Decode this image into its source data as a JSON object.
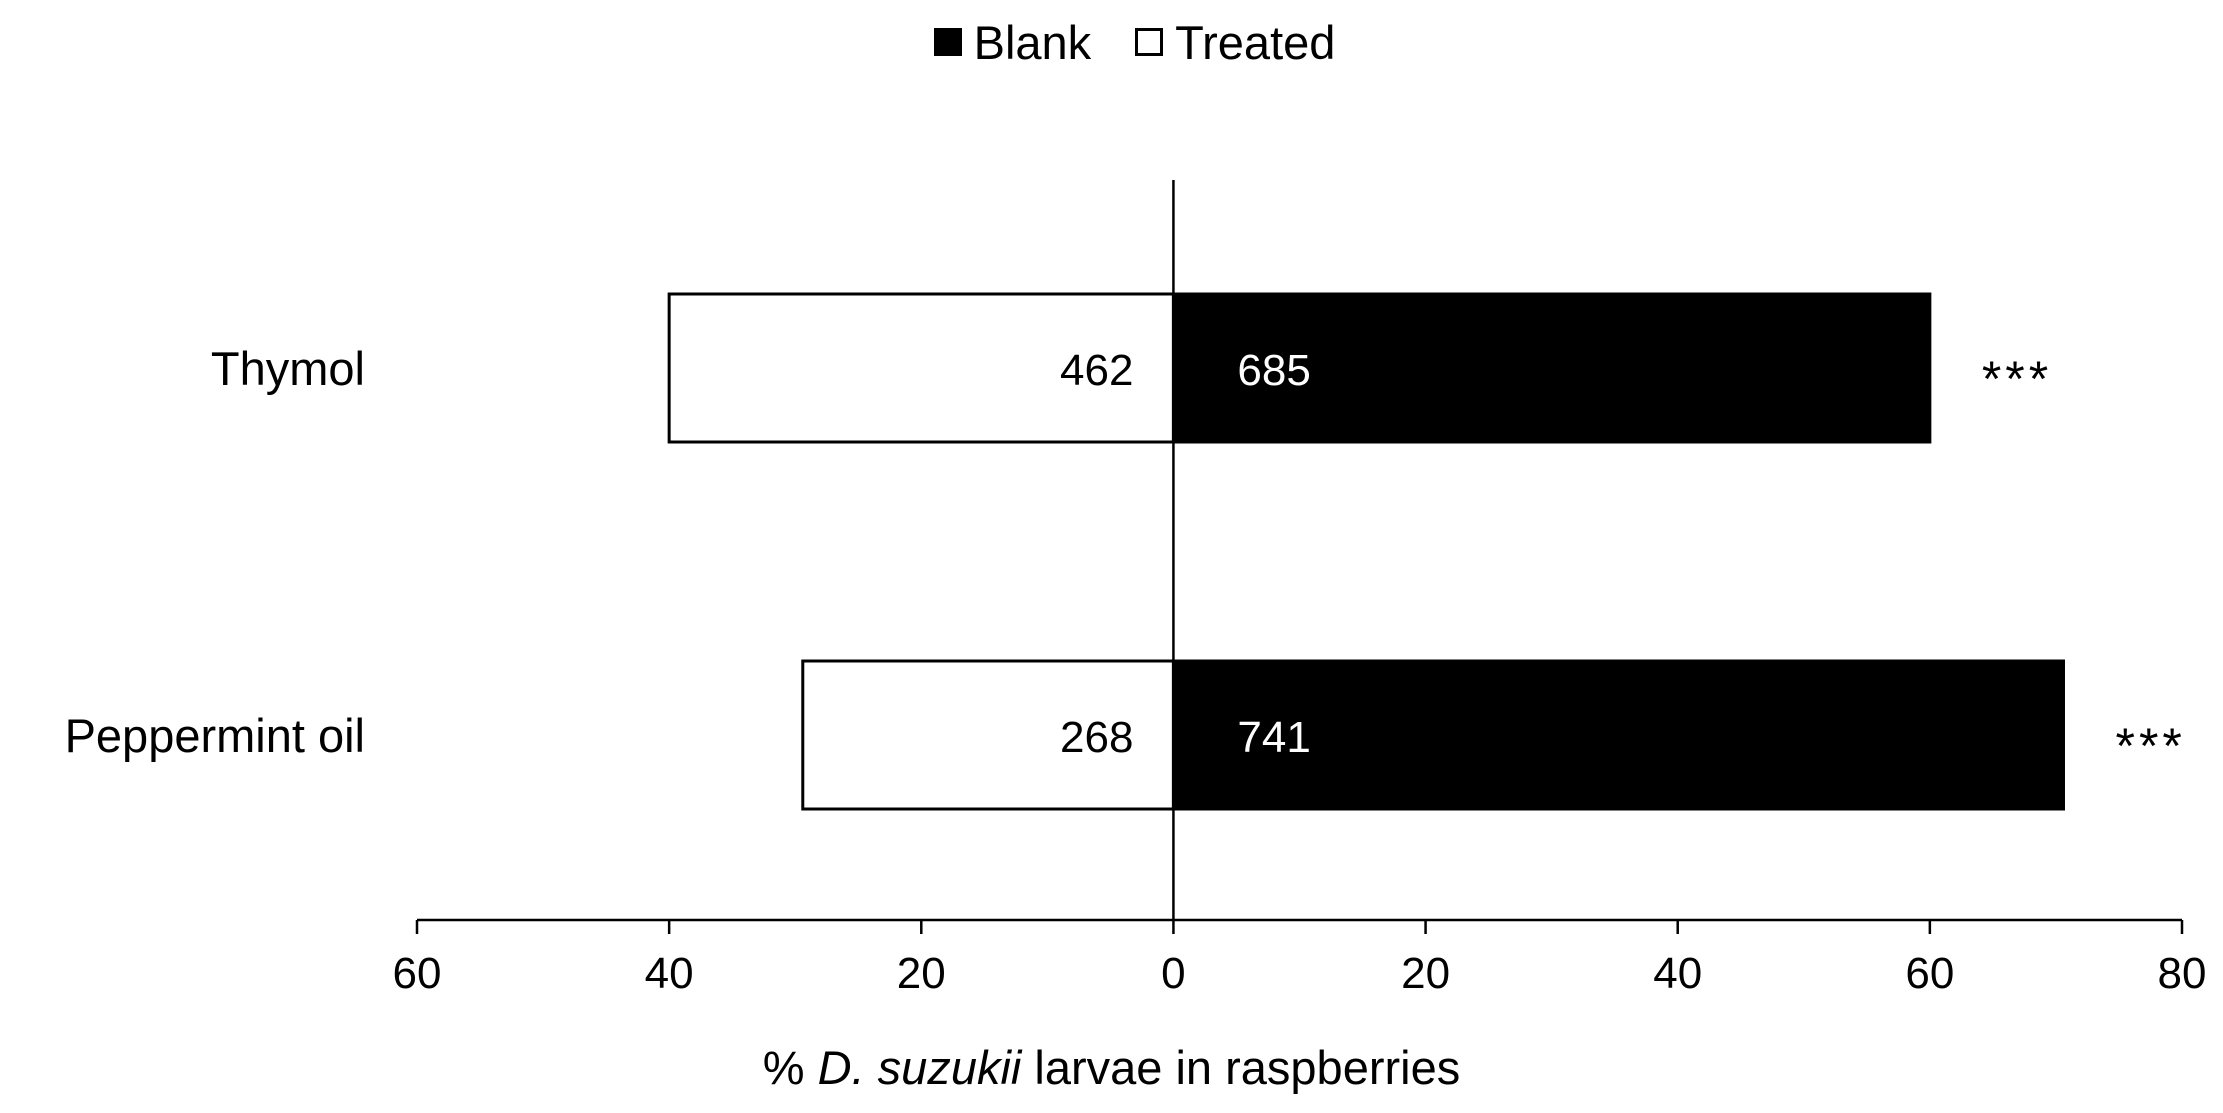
{
  "chart_data": {
    "type": "bar",
    "orientation": "horizontal-diverging",
    "categories": [
      "Thymol",
      "Peppermint oil"
    ],
    "series": [
      {
        "name": "Blank",
        "color": "#000000",
        "values": [
          60,
          70.6
        ],
        "counts": [
          "685",
          "741"
        ]
      },
      {
        "name": "Treated",
        "color": "#ffffff",
        "values": [
          40,
          29.4
        ],
        "counts": [
          "462",
          "268"
        ]
      }
    ],
    "significance": [
      "***",
      "***"
    ],
    "xlim": [
      -60,
      80
    ],
    "xticks": [
      -60,
      -40,
      -20,
      0,
      20,
      40,
      60,
      80
    ],
    "xtick_labels": [
      "60",
      "40",
      "20",
      "0",
      "20",
      "40",
      "60",
      "80"
    ],
    "xlabel": {
      "prefix": "% ",
      "italic": "D. suzukii",
      "suffix": " larvae in raspberries"
    },
    "legend": {
      "placement": "top-center",
      "items": [
        "Blank",
        "Treated"
      ]
    },
    "grid": false
  }
}
